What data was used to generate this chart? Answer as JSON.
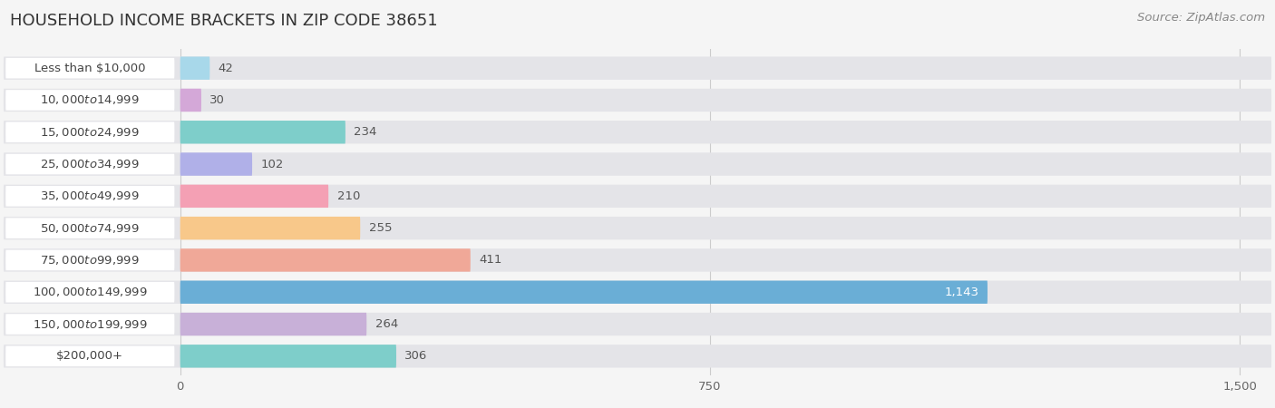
{
  "title": "HOUSEHOLD INCOME BRACKETS IN ZIP CODE 38651",
  "source": "Source: ZipAtlas.com",
  "categories": [
    "Less than $10,000",
    "$10,000 to $14,999",
    "$15,000 to $24,999",
    "$25,000 to $34,999",
    "$35,000 to $49,999",
    "$50,000 to $74,999",
    "$75,000 to $99,999",
    "$100,000 to $149,999",
    "$150,000 to $199,999",
    "$200,000+"
  ],
  "values": [
    42,
    30,
    234,
    102,
    210,
    255,
    411,
    1143,
    264,
    306
  ],
  "bar_colors": [
    "#a8d8ea",
    "#d4a8d8",
    "#7ececa",
    "#b0b0e8",
    "#f4a0b4",
    "#f8c88a",
    "#f0a898",
    "#6aaed6",
    "#c8b0d8",
    "#7ececa"
  ],
  "xlim_max": 1500,
  "xticks": [
    0,
    750,
    1500
  ],
  "bg_color": "#f5f5f5",
  "bar_bg_color": "#e4e4e8",
  "label_pill_color": "#ffffff",
  "value_color_outside": "#555555",
  "value_color_inside": "#ffffff",
  "grid_color": "#cccccc",
  "title_color": "#333333",
  "source_color": "#888888",
  "label_text_color": "#444444",
  "title_fontsize": 13,
  "label_fontsize": 9.5,
  "value_fontsize": 9.5,
  "source_fontsize": 9.5,
  "tick_fontsize": 9.5
}
